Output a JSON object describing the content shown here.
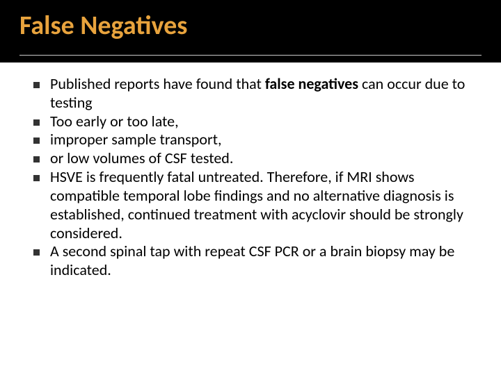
{
  "slide": {
    "title": "False Negatives",
    "title_color": "#e8a33d",
    "title_bg": "#000000",
    "title_fontsize": 38,
    "underline_color": "#c9c9c9",
    "body_fontsize": 22,
    "body_color": "#000000",
    "bullet_color": "#333333",
    "background": "#ffffff",
    "bullets": [
      {
        "pre": "Published reports have found that ",
        "bold": "false negatives",
        "post": " can occur due to testing"
      },
      {
        "pre": "Too early or too late,",
        "bold": "",
        "post": ""
      },
      {
        "pre": "improper sample transport,",
        "bold": "",
        "post": ""
      },
      {
        "pre": "or low volumes of CSF tested.",
        "bold": "",
        "post": ""
      },
      {
        "pre": "HSVE is frequently fatal untreated. Therefore, if MRI shows compatible temporal lobe findings and no alternative diagnosis is established, continued treatment with acyclovir should be strongly considered.",
        "bold": "",
        "post": ""
      },
      {
        "pre": " A second spinal tap with repeat CSF PCR or a brain biopsy may be indicated.",
        "bold": "",
        "post": ""
      }
    ]
  }
}
